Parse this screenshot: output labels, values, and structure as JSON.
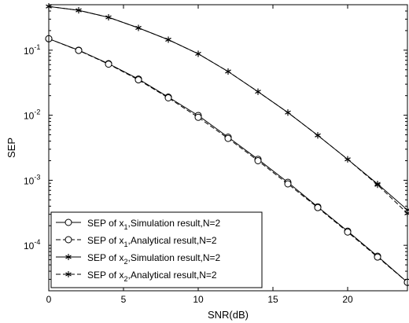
{
  "chart_data": {
    "type": "line",
    "xlabel": "SNR(dB)",
    "ylabel": "SEP",
    "xlim": [
      0,
      24
    ],
    "ylim": [
      2e-05,
      0.5
    ],
    "yscale": "log",
    "grid": false,
    "legend_position": "bottom-left",
    "x_ticks": [
      0,
      5,
      10,
      15,
      20
    ],
    "x_tick_labels": [
      "0",
      "5",
      "10",
      "15",
      "20"
    ],
    "y_ticks": [
      0.0001,
      0.001,
      0.01,
      0.1
    ],
    "y_tick_labels": [
      {
        "base": "10",
        "exp": "-4"
      },
      {
        "base": "10",
        "exp": "-3"
      },
      {
        "base": "10",
        "exp": "-2"
      },
      {
        "base": "10",
        "exp": "-1"
      }
    ],
    "x": [
      0,
      2,
      4,
      6,
      8,
      10,
      12,
      14,
      16,
      18,
      20,
      22,
      24
    ],
    "series": [
      {
        "name": {
          "pre": "SEP of x",
          "sub": "1",
          "post": ",Simulation result,N=2"
        },
        "marker": "circle",
        "line": "solid",
        "values": [
          0.15,
          0.1,
          0.062,
          0.036,
          0.019,
          0.0099,
          0.0046,
          0.0021,
          0.00093,
          0.00039,
          0.000165,
          6.8e-05,
          2.7e-05
        ]
      },
      {
        "name": {
          "pre": "SEP of x",
          "sub": "1",
          "post": ",Analytical result,N=2"
        },
        "marker": "circle",
        "line": "dashed",
        "values": [
          0.15,
          0.099,
          0.061,
          0.035,
          0.0185,
          0.0093,
          0.0044,
          0.002,
          0.00088,
          0.00038,
          0.00016,
          6.6e-05,
          2.7e-05
        ]
      },
      {
        "name": {
          "pre": "SEP of x",
          "sub": "2",
          "post": ",Simulation result,N=2"
        },
        "marker": "star",
        "line": "solid",
        "values": [
          0.47,
          0.41,
          0.32,
          0.22,
          0.145,
          0.088,
          0.047,
          0.023,
          0.011,
          0.0049,
          0.0021,
          0.00088,
          0.00035
        ]
      },
      {
        "name": {
          "pre": "SEP of x",
          "sub": "2",
          "post": ",Analytical result,N=2"
        },
        "marker": "star",
        "line": "dashed",
        "values": [
          0.47,
          0.41,
          0.32,
          0.22,
          0.145,
          0.088,
          0.047,
          0.023,
          0.011,
          0.0049,
          0.0021,
          0.00085,
          0.00031
        ]
      }
    ]
  }
}
